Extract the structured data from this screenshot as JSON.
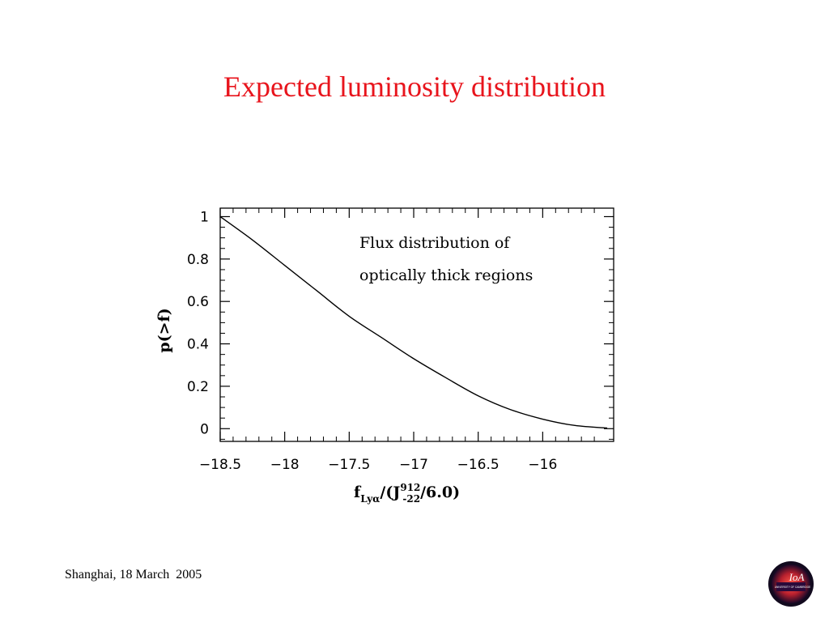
{
  "slide": {
    "title": "Expected luminosity distribution",
    "footer": "Shanghai, 18 March  2005",
    "logo_text": "IoA",
    "logo_subtext": "UNIVERSITY OF CAMBRIDGE",
    "colors": {
      "title": "#e8141c",
      "logo_outer": "#2a0a3a",
      "logo_inner": "#d4303a"
    }
  },
  "chart_data": {
    "type": "line",
    "title": "",
    "annotation": [
      "Flux distribution of",
      "optically thick regions"
    ],
    "xlabel": "f_Lyα/(J_-22^912/6.0)",
    "ylabel": "p(>f)",
    "xlim": [
      -18.5,
      -15.45
    ],
    "ylim": [
      -0.06,
      1.04
    ],
    "xticks": [
      -18.5,
      -18,
      -17.5,
      -17,
      -16.5,
      -16
    ],
    "xtick_labels": [
      "−18.5",
      "−18",
      "−17.5",
      "−17",
      "−16.5",
      "−16"
    ],
    "yticks": [
      0,
      0.2,
      0.4,
      0.6,
      0.8,
      1
    ],
    "ytick_labels": [
      "0",
      "0.2",
      "0.4",
      "0.6",
      "0.8",
      "1"
    ],
    "grid": false,
    "legend": "none",
    "series": [
      {
        "x": [
          -18.5,
          -18.25,
          -18.0,
          -17.75,
          -17.5,
          -17.25,
          -17.0,
          -16.75,
          -16.5,
          -16.25,
          -16.0,
          -15.75,
          -15.5
        ],
        "y": [
          1.0,
          0.89,
          0.77,
          0.65,
          0.53,
          0.43,
          0.33,
          0.24,
          0.155,
          0.09,
          0.045,
          0.015,
          0.003
        ]
      }
    ]
  }
}
